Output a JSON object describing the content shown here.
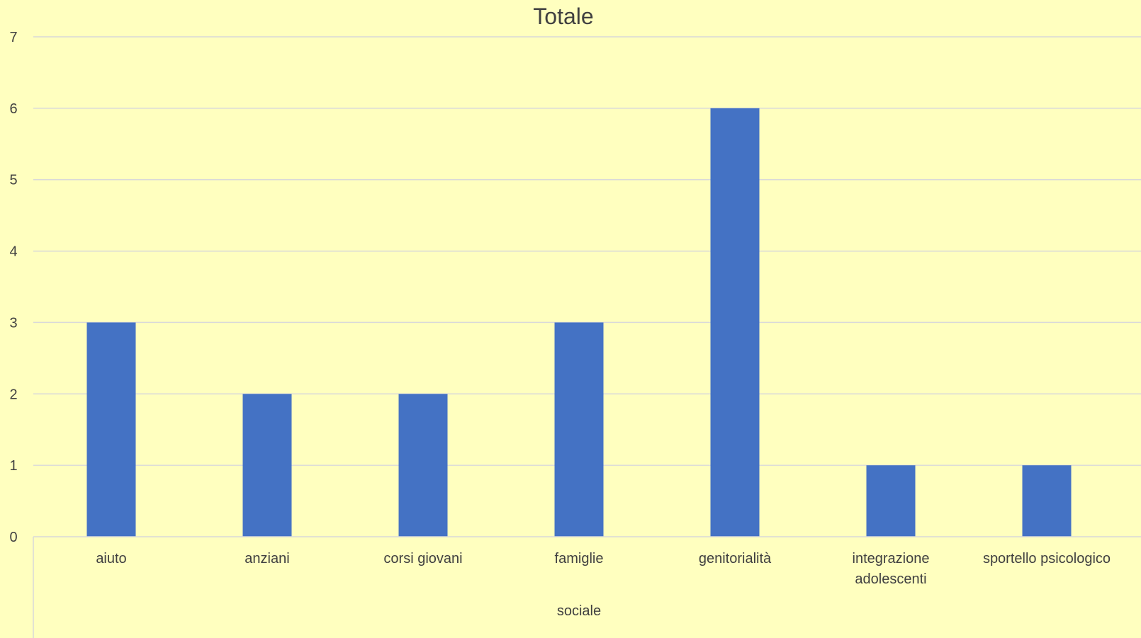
{
  "chart_data": {
    "type": "bar",
    "title": "Totale",
    "categories": [
      [
        "aiuto"
      ],
      [
        "anziani"
      ],
      [
        "corsi giovani"
      ],
      [
        "famiglie"
      ],
      [
        "genitorialità"
      ],
      [
        "integrazione",
        "adolescenti"
      ],
      [
        "sportello psicologico"
      ]
    ],
    "values": [
      3,
      2,
      2,
      3,
      6,
      1,
      1
    ],
    "group_label": "sociale",
    "yticks": [
      "0",
      "1",
      "2",
      "3",
      "4",
      "5",
      "6",
      "7"
    ],
    "ylim": [
      0,
      7
    ],
    "grid": true,
    "legend": false,
    "colors": {
      "background": "#ffffbf",
      "bar": "#4472c4",
      "grid": "#d9d9d9",
      "text": "#404040"
    }
  }
}
